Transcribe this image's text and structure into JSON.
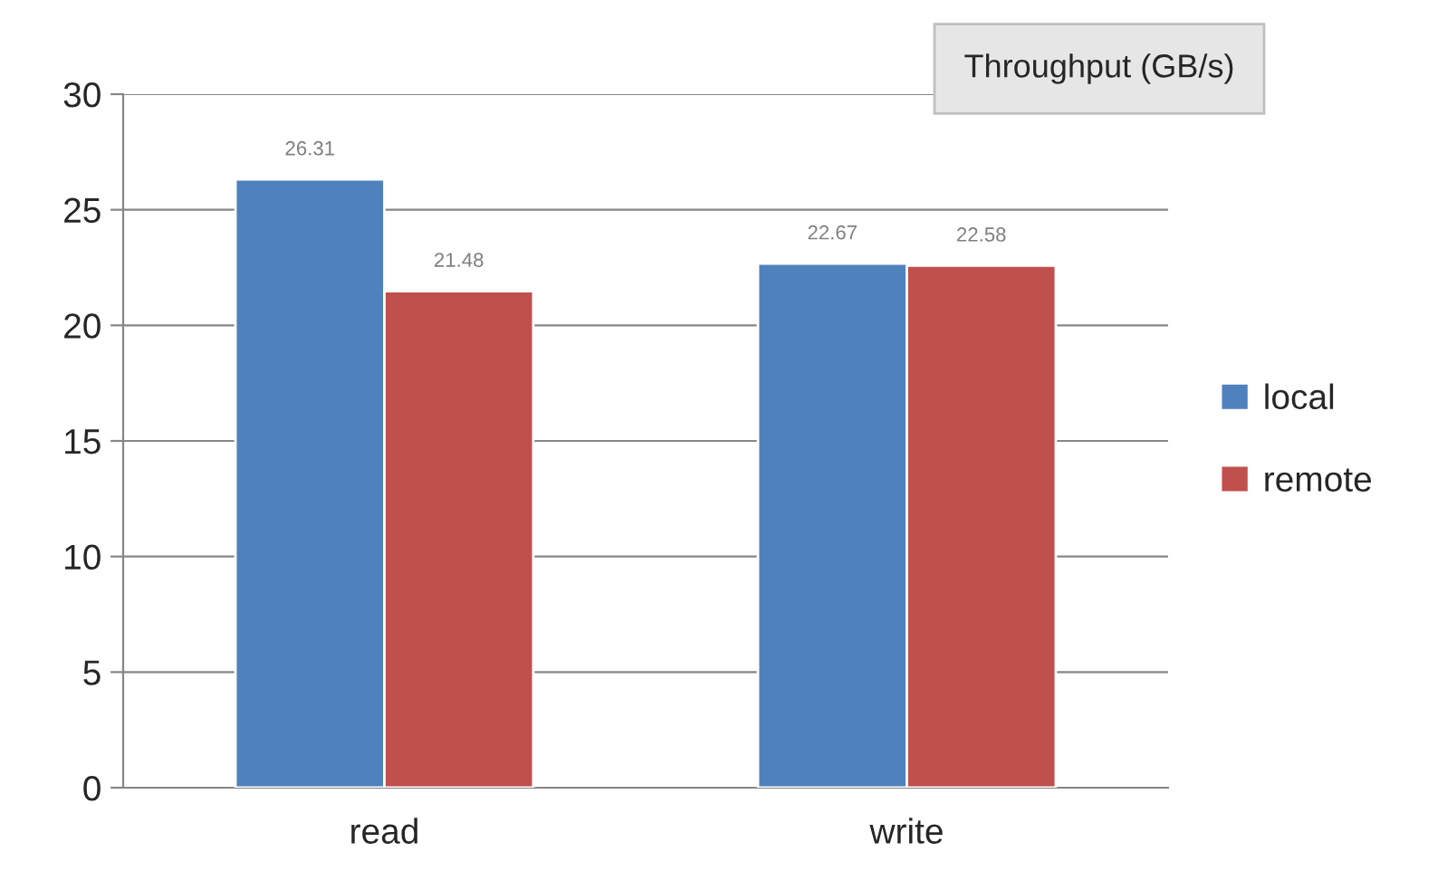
{
  "chart_data": {
    "type": "bar",
    "title": "Throughput (GB/s)",
    "categories": [
      "read",
      "write"
    ],
    "series": [
      {
        "name": "local",
        "color": "#4f81bd",
        "values": [
          26.31,
          22.67
        ]
      },
      {
        "name": "remote",
        "color": "#c0504d",
        "values": [
          21.48,
          22.58
        ]
      }
    ],
    "ylim": [
      0,
      30
    ],
    "yticks": [
      0,
      5,
      10,
      15,
      20,
      25,
      30
    ],
    "grid": "y",
    "legend": "right",
    "data_labels": true
  }
}
